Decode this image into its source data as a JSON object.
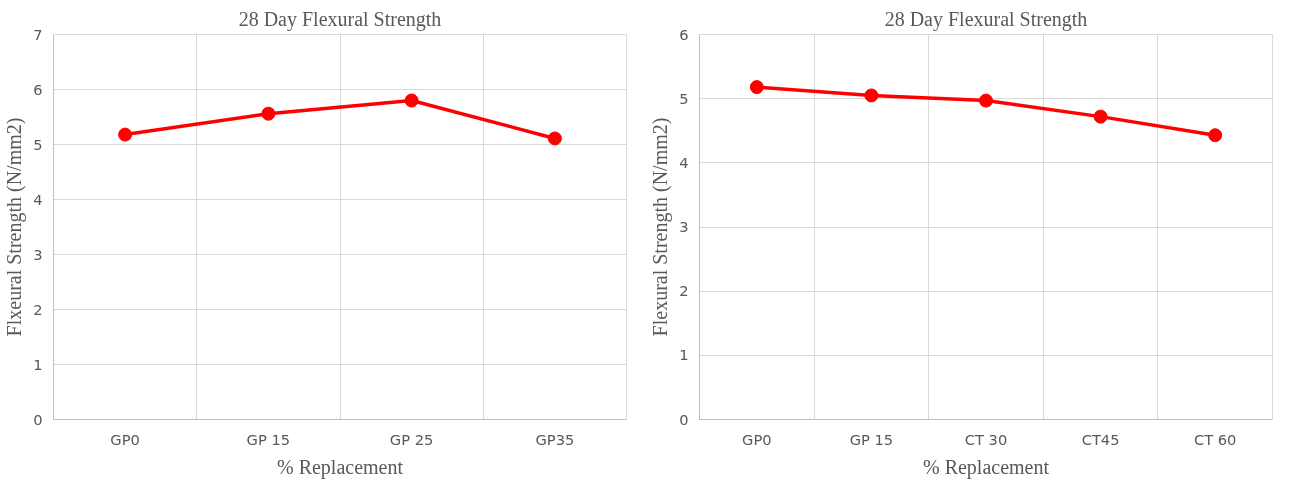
{
  "chart_data": [
    {
      "type": "line",
      "title": "28 Day Flexural Strength",
      "xlabel": "% Replacement",
      "ylabel": "Flxeural Strength (N/mm2)",
      "categories": [
        "GP0",
        "GP 15",
        "GP 25",
        "GP35"
      ],
      "series": [
        {
          "color": "#ff0000",
          "values": [
            5.18,
            5.56,
            5.8,
            5.11
          ]
        }
      ],
      "ylim": [
        0,
        7
      ],
      "yticks": [
        0,
        1,
        2,
        3,
        4,
        5,
        6,
        7
      ],
      "grid": true,
      "marker": "circle",
      "line_style": "solid"
    },
    {
      "type": "line",
      "title": "28 Day Flexural Strength",
      "xlabel": "% Replacement",
      "ylabel": "Flexural Strength (N/mm2)",
      "categories": [
        "GP0",
        "GP 15",
        "CT 30",
        "CT45",
        "CT 60"
      ],
      "series": [
        {
          "color": "#ff0000",
          "values": [
            5.18,
            5.05,
            4.97,
            4.72,
            4.43
          ]
        }
      ],
      "ylim": [
        0,
        6
      ],
      "yticks": [
        0,
        1,
        2,
        3,
        4,
        5,
        6
      ],
      "grid": true,
      "marker": "circle",
      "line_style": "solid"
    }
  ]
}
